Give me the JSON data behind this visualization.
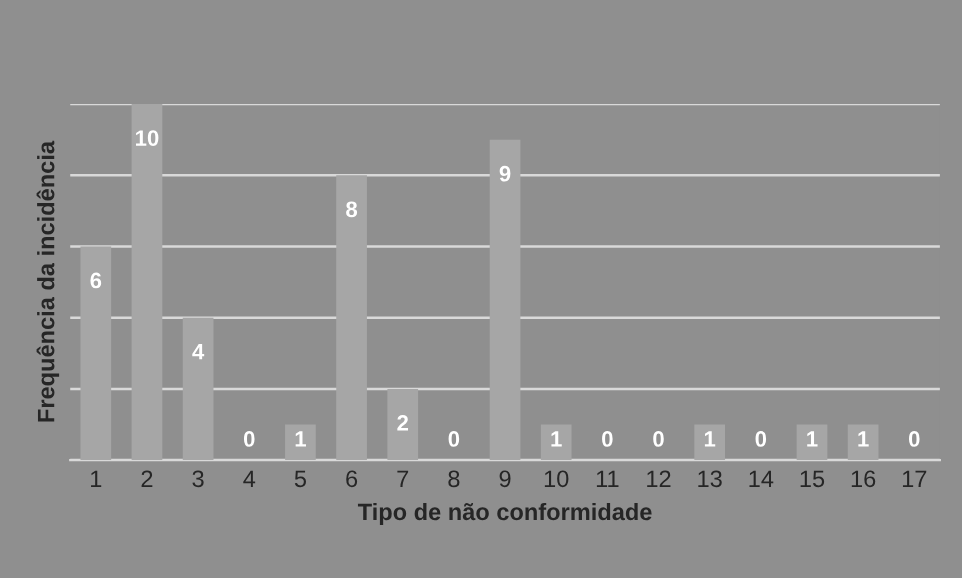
{
  "chart_data": {
    "type": "bar",
    "xlabel": "Tipo de não conformidade",
    "ylabel": "Frequência da incidência",
    "categories": [
      "1",
      "2",
      "3",
      "4",
      "5",
      "6",
      "7",
      "8",
      "9",
      "10",
      "11",
      "12",
      "13",
      "14",
      "15",
      "16",
      "17"
    ],
    "values": [
      6,
      10,
      4,
      0,
      1,
      8,
      2,
      0,
      9,
      1,
      0,
      0,
      1,
      0,
      1,
      1,
      0
    ],
    "color": "#a6a6a6",
    "ylim": [
      0,
      10
    ],
    "yticks": [
      {
        "value": 0,
        "label": null
      },
      {
        "value": 2,
        "label": null
      },
      {
        "value": 4,
        "label": null
      },
      {
        "value": 6,
        "label": null
      },
      {
        "value": 8,
        "label": null
      },
      {
        "value": 10,
        "label": null
      }
    ],
    "grid": "y",
    "tick_labels": "x",
    "data_labels": true
  }
}
